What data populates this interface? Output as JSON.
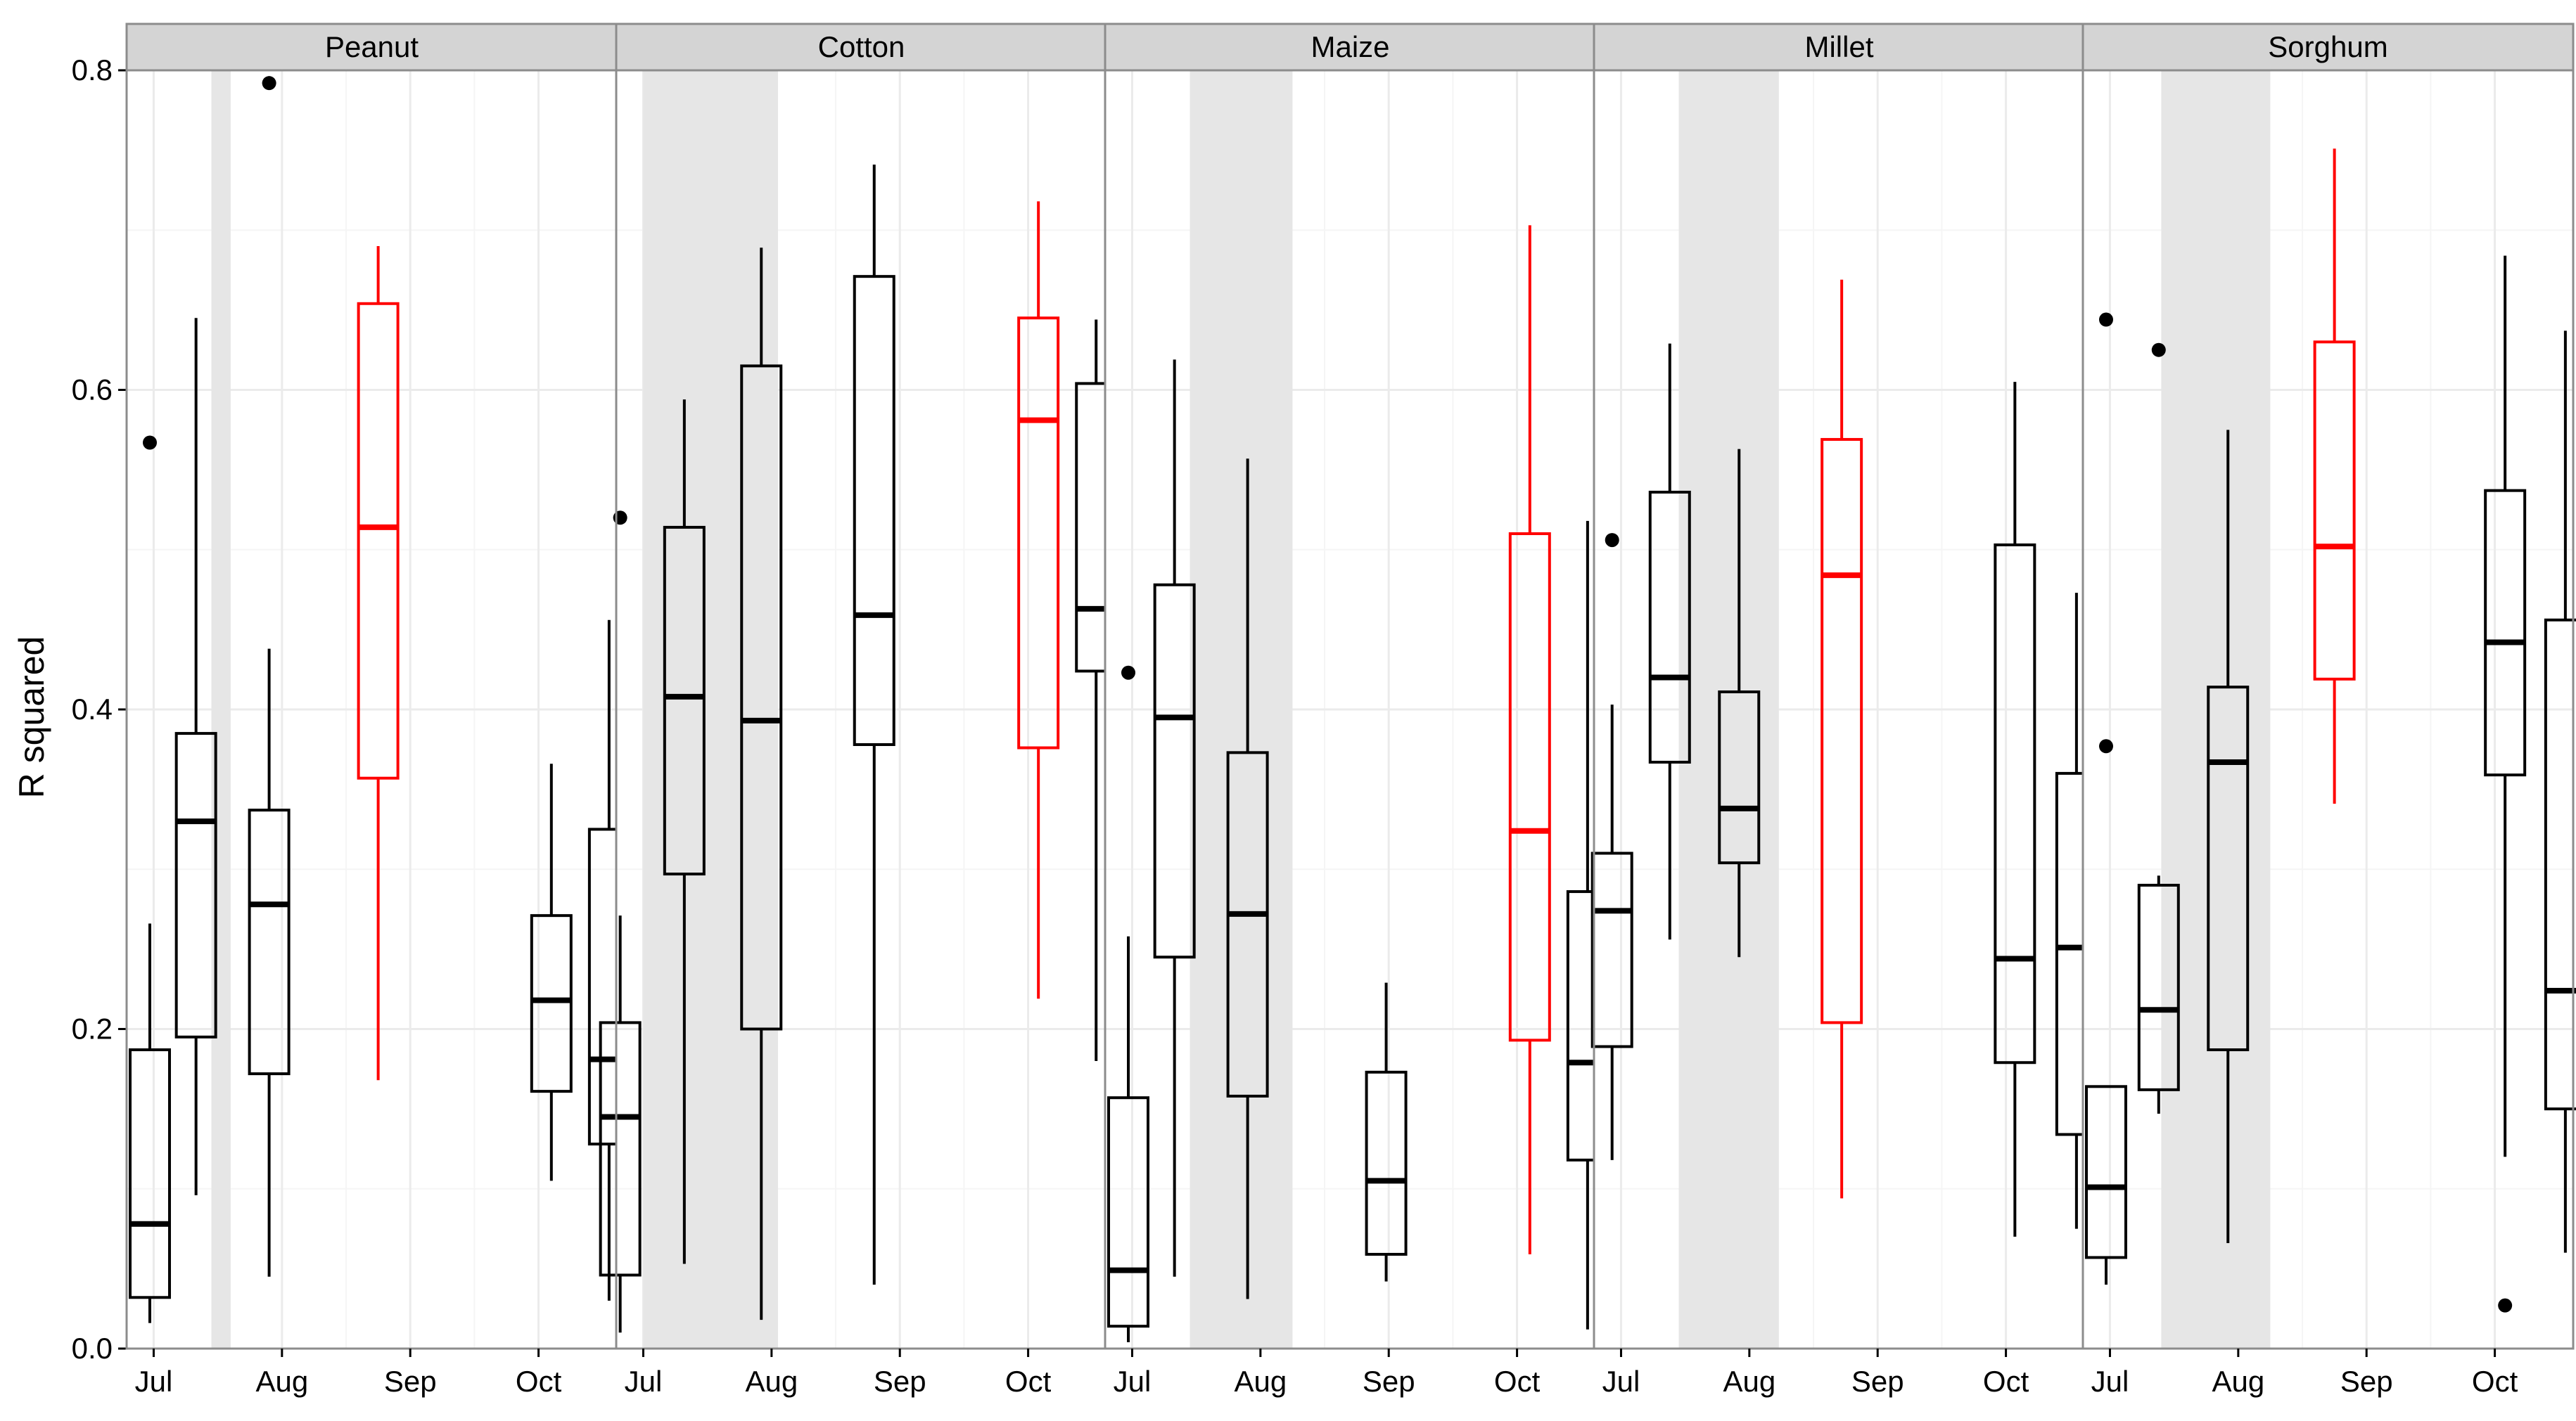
{
  "chart_data": {
    "type": "boxplot",
    "title": "",
    "xlabel": "",
    "ylabel": "R squared",
    "ylim": [
      0,
      0.8
    ],
    "yticks": [
      0.0,
      0.2,
      0.4,
      0.6,
      0.8
    ],
    "ytick_labels": [
      "0.0",
      "0.2",
      "0.4",
      "0.6",
      "0.8"
    ],
    "xlim": [
      6.8,
      10.6
    ],
    "xticks": [
      7,
      8,
      9,
      10
    ],
    "xtick_labels": [
      "Jul",
      "Aug",
      "Sep",
      "Oct"
    ],
    "grid": true,
    "colors": {
      "normal": "#000000",
      "highlight": "#ff0000",
      "shade": "#e6e6e6",
      "strip": "#d4d4d4",
      "panel_border": "#8c8c8c",
      "grid_major": "#ebebeb",
      "grid_minor": "#f5f5f5"
    },
    "panels": [
      {
        "name": "Peanut",
        "shade": [
          7.45,
          7.6
        ],
        "boxes": [
          {
            "x": 6.97,
            "whisker_low": 0.016,
            "q1": 0.032,
            "median": 0.078,
            "q3": 0.187,
            "whisker_high": 0.266,
            "outliers": [
              0.567
            ],
            "color": "normal"
          },
          {
            "x": 7.33,
            "whisker_low": 0.096,
            "q1": 0.195,
            "median": 0.33,
            "q3": 0.385,
            "whisker_high": 0.645,
            "outliers": [],
            "color": "normal"
          },
          {
            "x": 7.9,
            "whisker_low": 0.045,
            "q1": 0.172,
            "median": 0.278,
            "q3": 0.337,
            "whisker_high": 0.438,
            "outliers": [
              0.792
            ],
            "color": "normal"
          },
          {
            "x": 8.75,
            "whisker_low": 0.168,
            "q1": 0.357,
            "median": 0.514,
            "q3": 0.654,
            "whisker_high": 0.69,
            "outliers": [],
            "color": "highlight"
          },
          {
            "x": 10.1,
            "whisker_low": 0.105,
            "q1": 0.161,
            "median": 0.218,
            "q3": 0.271,
            "whisker_high": 0.366,
            "outliers": [],
            "color": "normal"
          },
          {
            "x": 10.55,
            "whisker_low": 0.03,
            "q1": 0.128,
            "median": 0.181,
            "q3": 0.325,
            "whisker_high": 0.456,
            "outliers": [],
            "color": "normal"
          }
        ]
      },
      {
        "name": "Cotton",
        "shade": [
          7.0,
          8.05
        ],
        "boxes": [
          {
            "x": 6.82,
            "whisker_low": 0.01,
            "q1": 0.046,
            "median": 0.145,
            "q3": 0.204,
            "whisker_high": 0.271,
            "outliers": [
              0.52
            ],
            "color": "normal"
          },
          {
            "x": 7.32,
            "whisker_low": 0.053,
            "q1": 0.297,
            "median": 0.408,
            "q3": 0.514,
            "whisker_high": 0.594,
            "outliers": [],
            "color": "normal"
          },
          {
            "x": 7.92,
            "whisker_low": 0.018,
            "q1": 0.2,
            "median": 0.393,
            "q3": 0.615,
            "whisker_high": 0.689,
            "outliers": [],
            "color": "normal"
          },
          {
            "x": 8.8,
            "whisker_low": 0.04,
            "q1": 0.378,
            "median": 0.459,
            "q3": 0.671,
            "whisker_high": 0.741,
            "outliers": [],
            "color": "normal"
          },
          {
            "x": 10.08,
            "whisker_low": 0.219,
            "q1": 0.376,
            "median": 0.581,
            "q3": 0.645,
            "whisker_high": 0.718,
            "outliers": [],
            "color": "highlight"
          },
          {
            "x": 10.53,
            "whisker_low": 0.18,
            "q1": 0.424,
            "median": 0.463,
            "q3": 0.604,
            "whisker_high": 0.644,
            "outliers": [],
            "color": "normal"
          }
        ]
      },
      {
        "name": "Maize",
        "shade": [
          7.45,
          8.25
        ],
        "boxes": [
          {
            "x": 6.97,
            "whisker_low": 0.004,
            "q1": 0.014,
            "median": 0.049,
            "q3": 0.157,
            "whisker_high": 0.258,
            "outliers": [
              0.423
            ],
            "color": "normal"
          },
          {
            "x": 7.33,
            "whisker_low": 0.045,
            "q1": 0.245,
            "median": 0.395,
            "q3": 0.478,
            "whisker_high": 0.619,
            "outliers": [],
            "color": "normal"
          },
          {
            "x": 7.9,
            "whisker_low": 0.031,
            "q1": 0.158,
            "median": 0.272,
            "q3": 0.373,
            "whisker_high": 0.557,
            "outliers": [],
            "color": "normal"
          },
          {
            "x": 8.98,
            "whisker_low": 0.042,
            "q1": 0.059,
            "median": 0.105,
            "q3": 0.173,
            "whisker_high": 0.229,
            "outliers": [],
            "color": "normal"
          },
          {
            "x": 10.1,
            "whisker_low": 0.059,
            "q1": 0.193,
            "median": 0.324,
            "q3": 0.51,
            "whisker_high": 0.703,
            "outliers": [],
            "color": "highlight"
          },
          {
            "x": 10.55,
            "whisker_low": 0.012,
            "q1": 0.118,
            "median": 0.179,
            "q3": 0.286,
            "whisker_high": 0.518,
            "outliers": [],
            "color": "normal"
          }
        ]
      },
      {
        "name": "Millet",
        "shade": [
          7.45,
          8.23
        ],
        "boxes": [
          {
            "x": 6.93,
            "whisker_low": 0.118,
            "q1": 0.189,
            "median": 0.274,
            "q3": 0.31,
            "whisker_high": 0.403,
            "outliers": [
              0.506
            ],
            "color": "normal"
          },
          {
            "x": 7.38,
            "whisker_low": 0.256,
            "q1": 0.367,
            "median": 0.42,
            "q3": 0.536,
            "whisker_high": 0.629,
            "outliers": [],
            "color": "normal"
          },
          {
            "x": 7.92,
            "whisker_low": 0.245,
            "q1": 0.304,
            "median": 0.338,
            "q3": 0.411,
            "whisker_high": 0.563,
            "outliers": [],
            "color": "normal"
          },
          {
            "x": 8.72,
            "whisker_low": 0.094,
            "q1": 0.204,
            "median": 0.484,
            "q3": 0.569,
            "whisker_high": 0.669,
            "outliers": [],
            "color": "highlight"
          },
          {
            "x": 10.07,
            "whisker_low": 0.07,
            "q1": 0.179,
            "median": 0.244,
            "q3": 0.503,
            "whisker_high": 0.605,
            "outliers": [],
            "color": "normal"
          },
          {
            "x": 10.55,
            "whisker_low": 0.075,
            "q1": 0.134,
            "median": 0.251,
            "q3": 0.36,
            "whisker_high": 0.473,
            "outliers": [],
            "color": "normal"
          }
        ]
      },
      {
        "name": "Sorghum",
        "shade": [
          7.4,
          8.25
        ],
        "boxes": [
          {
            "x": 6.97,
            "whisker_low": 0.04,
            "q1": 0.057,
            "median": 0.101,
            "q3": 0.164,
            "whisker_high": 0.164,
            "outliers": [
              0.644,
              0.377
            ],
            "color": "normal"
          },
          {
            "x": 7.38,
            "whisker_low": 0.147,
            "q1": 0.162,
            "median": 0.212,
            "q3": 0.29,
            "whisker_high": 0.296,
            "outliers": [
              0.625
            ],
            "color": "normal"
          },
          {
            "x": 7.92,
            "whisker_low": 0.066,
            "q1": 0.187,
            "median": 0.367,
            "q3": 0.414,
            "whisker_high": 0.575,
            "outliers": [],
            "color": "normal"
          },
          {
            "x": 8.75,
            "whisker_low": 0.341,
            "q1": 0.419,
            "median": 0.502,
            "q3": 0.63,
            "whisker_high": 0.751,
            "outliers": [],
            "color": "highlight"
          },
          {
            "x": 10.08,
            "whisker_low": 0.12,
            "q1": 0.359,
            "median": 0.442,
            "q3": 0.537,
            "whisker_high": 0.684,
            "outliers": [
              0.027
            ],
            "color": "normal"
          },
          {
            "x": 10.55,
            "whisker_low": 0.06,
            "q1": 0.15,
            "median": 0.224,
            "q3": 0.456,
            "whisker_high": 0.637,
            "outliers": [],
            "color": "normal"
          }
        ]
      }
    ]
  }
}
